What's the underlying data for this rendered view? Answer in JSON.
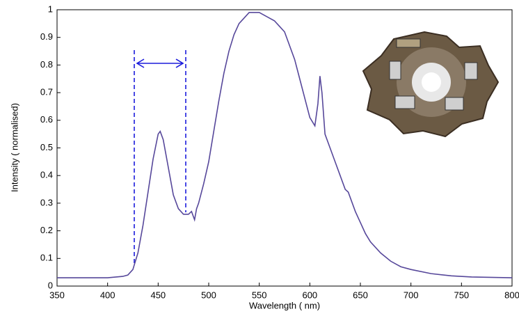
{
  "chart_data": {
    "type": "line",
    "x_label": "Wavelength ( nm)",
    "y_label": "Intensity  ( normalised)",
    "xlim": [
      350,
      800
    ],
    "ylim": [
      0,
      1
    ],
    "xticks": [
      350,
      400,
      450,
      500,
      550,
      600,
      650,
      700,
      750,
      800
    ],
    "yticks": [
      0,
      0.1,
      0.2,
      0.3,
      0.4,
      0.5,
      0.6,
      0.7,
      0.8,
      0.9,
      1
    ],
    "grid": false,
    "x": [
      350,
      400,
      415,
      420,
      425,
      430,
      435,
      440,
      445,
      450,
      452,
      455,
      460,
      465,
      470,
      475,
      480,
      483,
      486,
      488,
      490,
      495,
      500,
      505,
      510,
      515,
      520,
      525,
      530,
      535,
      540,
      545,
      550,
      555,
      560,
      565,
      570,
      575,
      580,
      585,
      590,
      595,
      600,
      605,
      608,
      610,
      612,
      615,
      620,
      625,
      630,
      635,
      638,
      640,
      645,
      650,
      655,
      660,
      670,
      680,
      690,
      700,
      720,
      740,
      760,
      800
    ],
    "series": [
      {
        "color": "#56479a",
        "values": [
          0.03,
          0.03,
          0.035,
          0.04,
          0.06,
          0.12,
          0.22,
          0.34,
          0.46,
          0.55,
          0.56,
          0.53,
          0.43,
          0.33,
          0.28,
          0.26,
          0.26,
          0.27,
          0.24,
          0.28,
          0.3,
          0.37,
          0.45,
          0.56,
          0.67,
          0.77,
          0.85,
          0.91,
          0.95,
          0.97,
          0.99,
          0.99,
          0.99,
          0.98,
          0.97,
          0.96,
          0.94,
          0.92,
          0.87,
          0.82,
          0.75,
          0.68,
          0.61,
          0.58,
          0.66,
          0.76,
          0.7,
          0.55,
          0.5,
          0.45,
          0.4,
          0.35,
          0.34,
          0.32,
          0.27,
          0.23,
          0.19,
          0.16,
          0.12,
          0.09,
          0.07,
          0.06,
          0.045,
          0.037,
          0.033,
          0.03
        ]
      }
    ]
  }
}
